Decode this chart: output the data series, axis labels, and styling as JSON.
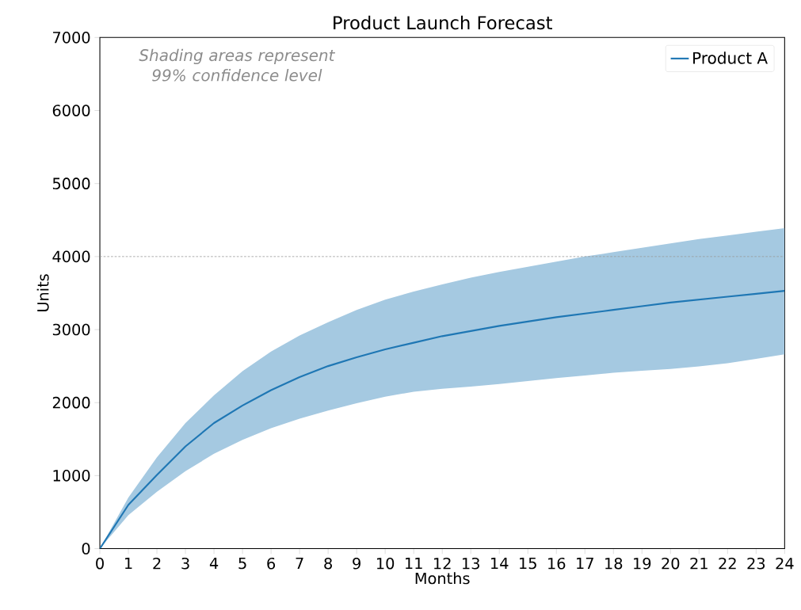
{
  "chart_data": {
    "type": "line",
    "title": "Product Launch Forecast",
    "xlabel": "Months",
    "ylabel": "Units",
    "x": [
      0,
      1,
      2,
      3,
      4,
      5,
      6,
      7,
      8,
      9,
      10,
      11,
      12,
      13,
      14,
      15,
      16,
      17,
      18,
      19,
      20,
      21,
      22,
      23,
      24
    ],
    "series": [
      {
        "name": "Product A",
        "color": "#1f77b4",
        "values": [
          0,
          600,
          1010,
          1400,
          1720,
          1960,
          2170,
          2350,
          2500,
          2620,
          2730,
          2820,
          2910,
          2980,
          3050,
          3110,
          3170,
          3220,
          3270,
          3320,
          3370,
          3410,
          3450,
          3490,
          3530
        ],
        "upper": [
          0,
          700,
          1250,
          1720,
          2100,
          2430,
          2700,
          2920,
          3100,
          3270,
          3410,
          3520,
          3620,
          3710,
          3790,
          3860,
          3930,
          4000,
          4060,
          4120,
          4180,
          4240,
          4290,
          4340,
          4390
        ],
        "lower": [
          0,
          460,
          780,
          1060,
          1300,
          1490,
          1650,
          1780,
          1890,
          1990,
          2080,
          2150,
          2190,
          2220,
          2255,
          2295,
          2335,
          2370,
          2410,
          2435,
          2460,
          2495,
          2540,
          2600,
          2660
        ]
      }
    ],
    "ref_lines": [
      {
        "axis": "y",
        "value": 4000,
        "color": "#999999",
        "line_style": "dashed"
      }
    ],
    "annotations": [
      "Shading areas represent 99% confidence level"
    ],
    "xlim": [
      0,
      24
    ],
    "xticks": [
      0,
      1,
      2,
      3,
      4,
      5,
      6,
      7,
      8,
      9,
      10,
      11,
      12,
      13,
      14,
      15,
      16,
      17,
      18,
      19,
      20,
      21,
      22,
      23,
      24
    ],
    "ylim": [
      0,
      7000
    ],
    "yticks": [
      0,
      1000,
      2000,
      3000,
      4000,
      5000,
      6000,
      7000
    ],
    "legend": "top right",
    "grid": false,
    "marker": "none",
    "line_style": "solid"
  }
}
